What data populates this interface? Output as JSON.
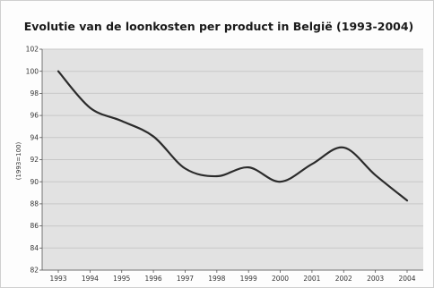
{
  "chart_data": {
    "type": "line",
    "title": "Evolutie van de loonkosten per product in België (1993-2004)",
    "ylabel": "(1993=100)",
    "xlabel": "",
    "x": [
      "1993",
      "1994",
      "1995",
      "1996",
      "1997",
      "1998",
      "1999",
      "2000",
      "2001",
      "2002",
      "2003",
      "2004"
    ],
    "series": [
      {
        "values": [
          100.0,
          96.7,
          95.5,
          94.1,
          91.2,
          90.5,
          91.3,
          90.0,
          91.6,
          93.1,
          90.6,
          88.3
        ]
      }
    ],
    "ylim": [
      82,
      102
    ],
    "yticks": [
      82,
      84,
      86,
      88,
      90,
      92,
      94,
      96,
      98,
      100,
      102
    ],
    "grid": true,
    "legend": "none",
    "colors": {
      "plot_background": "#e2e2e2",
      "line": "#2b2b2b",
      "grid": "#c8c8c8"
    }
  }
}
